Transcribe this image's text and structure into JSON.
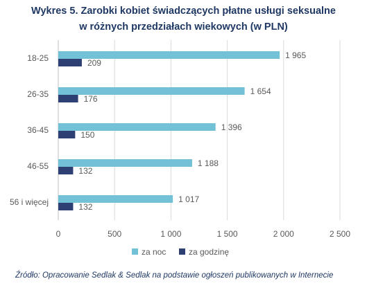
{
  "chart_data": {
    "type": "bar",
    "orientation": "horizontal",
    "title": "Wykres 5. Zarobki kobiet świadczących płatne usługi seksualne",
    "subtitle": "w różnych przedziałach wiekowych (w PLN)",
    "categories": [
      "18-25",
      "26-35",
      "36-45",
      "46-55",
      "56 i więcej"
    ],
    "series": [
      {
        "name": "za noc",
        "values": [
          1965,
          1654,
          1396,
          1188,
          1017
        ],
        "color": "#72c1d6"
      },
      {
        "name": "za godzinę",
        "values": [
          209,
          176,
          150,
          132,
          132
        ],
        "color": "#2e3f73"
      }
    ],
    "xlim": [
      0,
      2500
    ],
    "xticks": [
      0,
      500,
      1000,
      1500,
      2000,
      2500
    ],
    "xtick_labels": [
      "0",
      "500",
      "1 000",
      "1 500",
      "2 000",
      "2 500"
    ],
    "data_labels": [
      [
        "1 965",
        "1 654",
        "1 396",
        "1 188",
        "1 017"
      ],
      [
        "209",
        "176",
        "150",
        "132",
        "132"
      ]
    ],
    "grid": true,
    "legend": "bottom",
    "source": "Źródło: Opracowanie Sedlak & Sedlak na podstawie ogłoszeń publikowanych w Internecie"
  }
}
